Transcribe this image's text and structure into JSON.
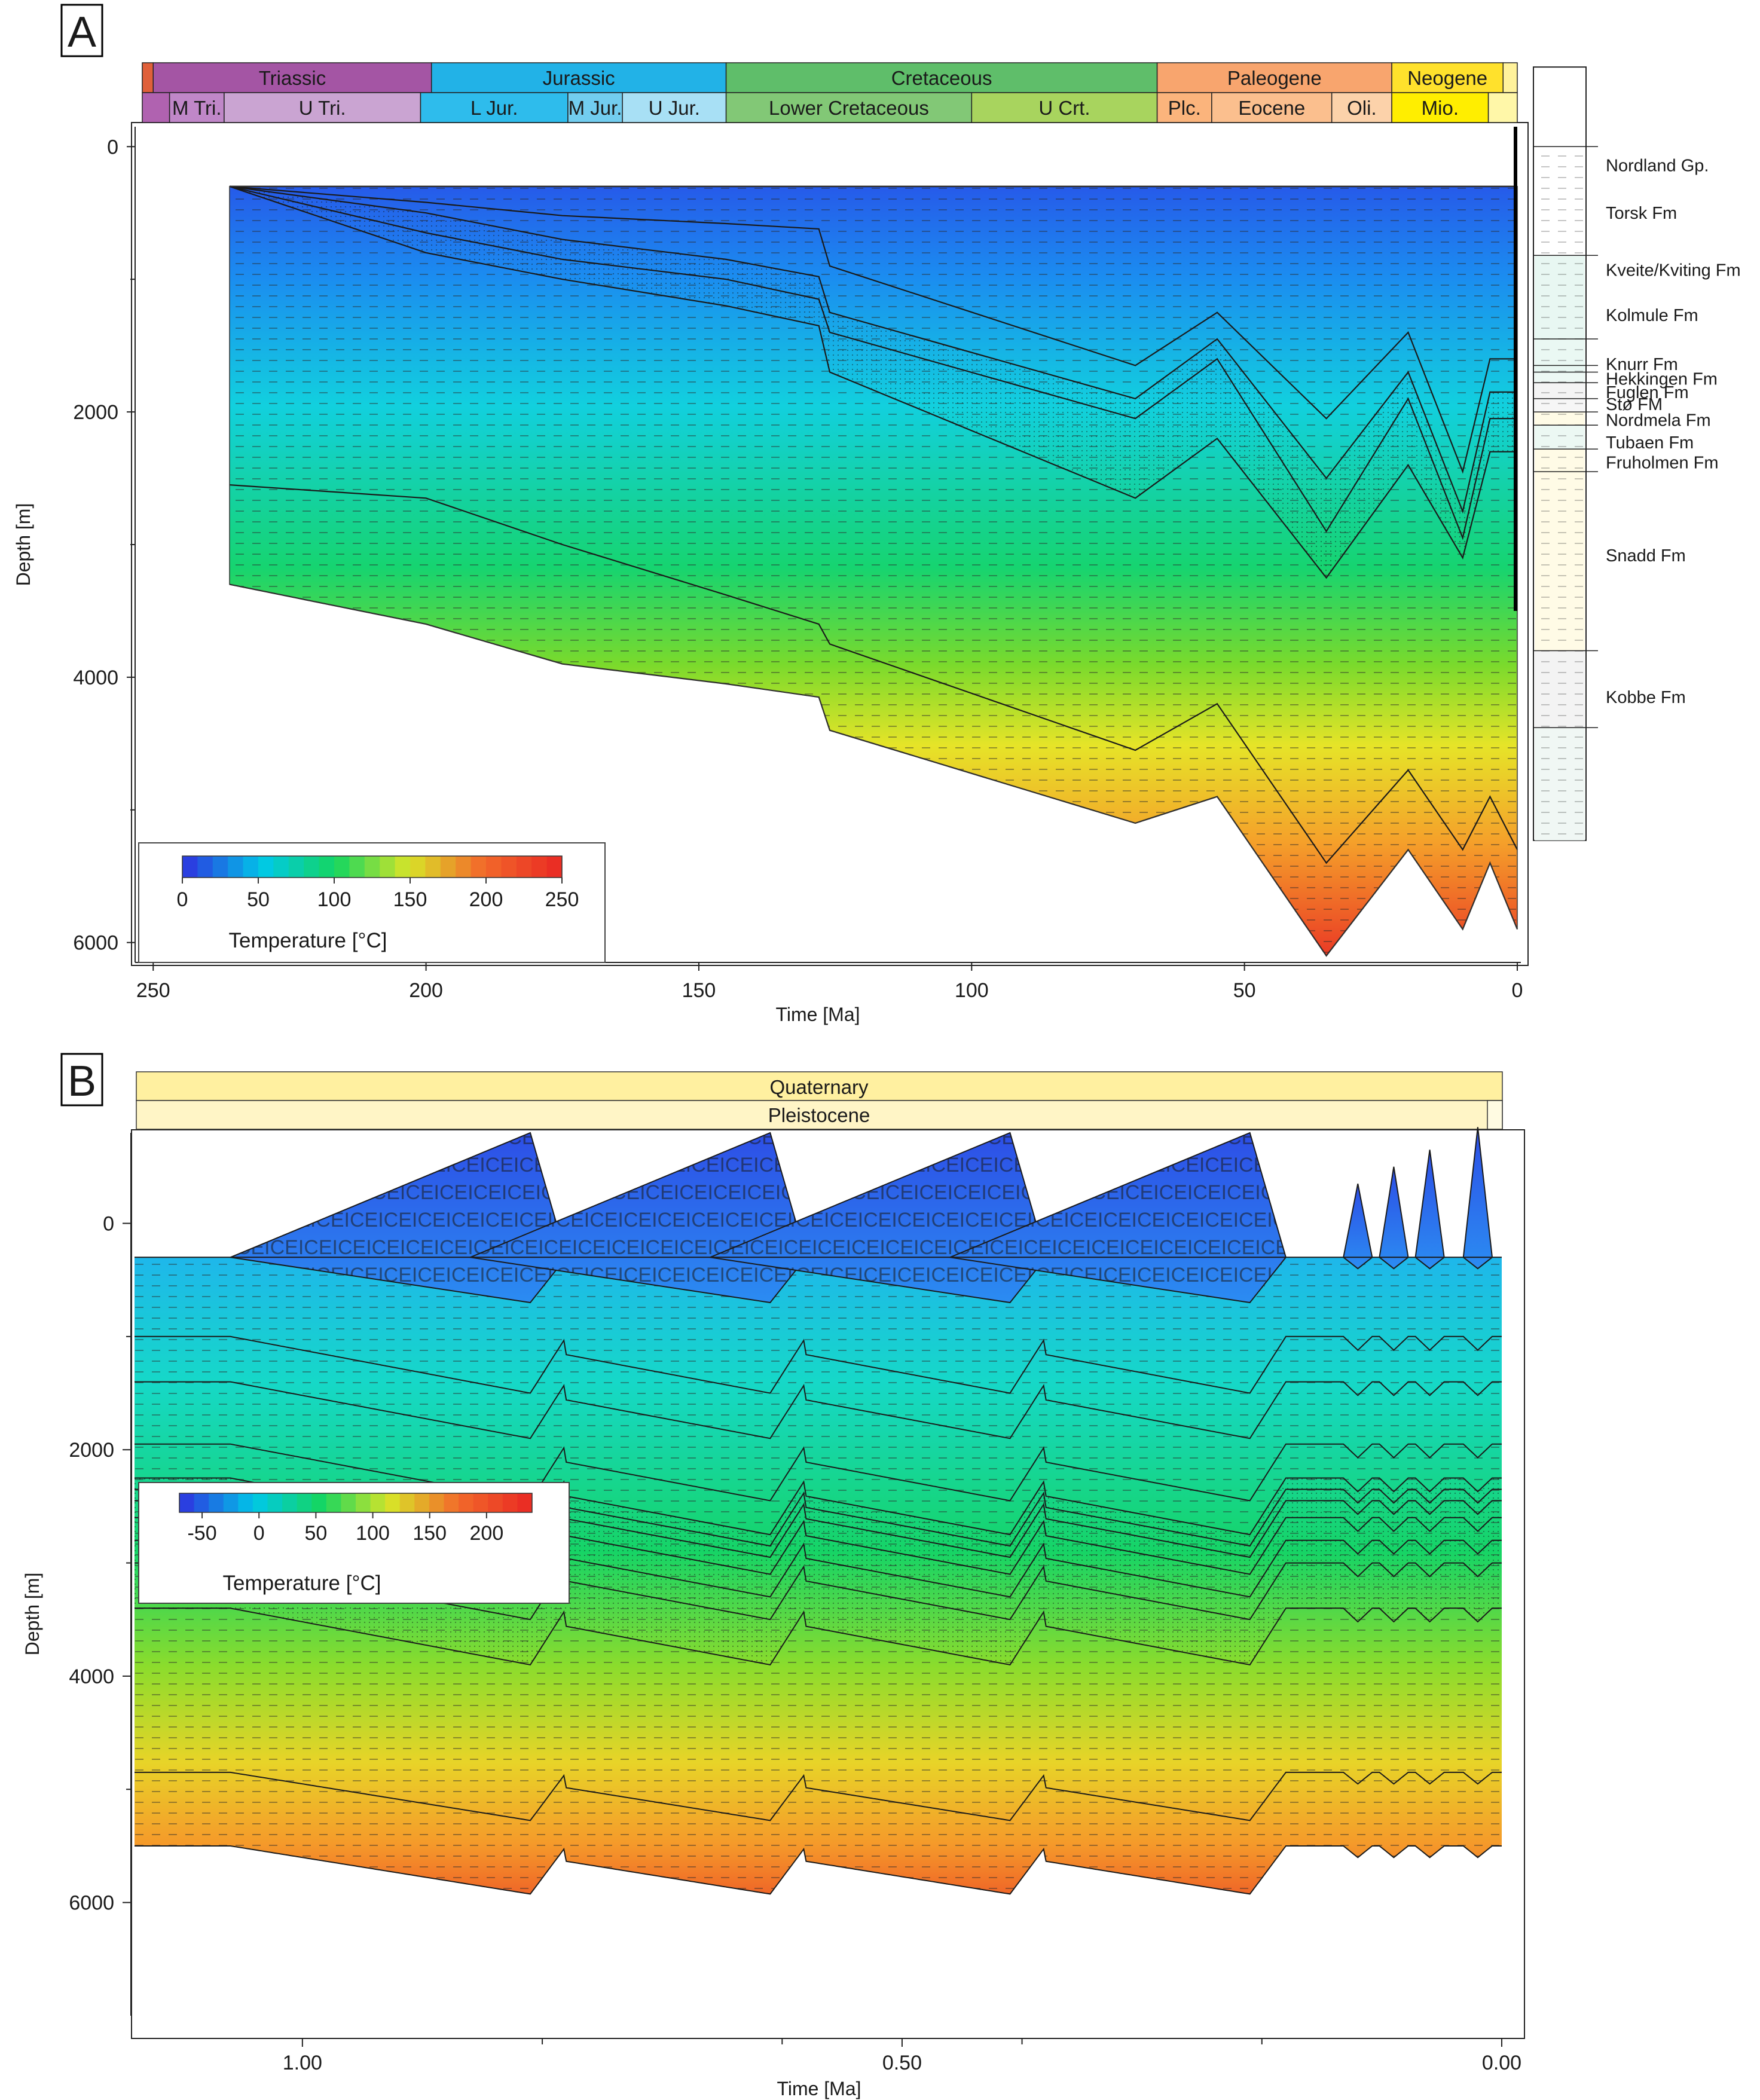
{
  "figure": {
    "panel_a_label": "A",
    "panel_b_label": "B"
  },
  "chart_data": [
    {
      "type": "heatmap",
      "panel": "A",
      "title": "",
      "xlabel": "Time [Ma]",
      "ylabel": "Depth [m]",
      "xlim": [
        252,
        0
      ],
      "ylim": [
        -150,
        6150
      ],
      "x_ticks": [
        250,
        200,
        150,
        100,
        50,
        0
      ],
      "y_ticks": [
        0,
        2000,
        4000,
        6000
      ],
      "periods": [
        {
          "label": "",
          "start": 252,
          "end": 250,
          "color": "#e0603a"
        },
        {
          "label": "Triassic",
          "start": 250,
          "end": 199,
          "color": "#a455a4"
        },
        {
          "label": "Jurassic",
          "start": 199,
          "end": 145,
          "color": "#22b2e7"
        },
        {
          "label": "Cretaceous",
          "start": 145,
          "end": 66,
          "color": "#5fbe6a"
        },
        {
          "label": "Paleogene",
          "start": 66,
          "end": 23,
          "color": "#f8a56e"
        },
        {
          "label": "Neogene",
          "start": 23,
          "end": 2.6,
          "color": "#ffe12c"
        },
        {
          "label": "",
          "start": 2.6,
          "end": 0,
          "color": "#fff29b"
        }
      ],
      "epochs": [
        {
          "label": "",
          "start": 252,
          "end": 247,
          "color": "#b062b0"
        },
        {
          "label": "M Tri.",
          "start": 247,
          "end": 237,
          "color": "#c087c8"
        },
        {
          "label": "U Tri.",
          "start": 237,
          "end": 201,
          "color": "#caa4d2"
        },
        {
          "label": "L Jur.",
          "start": 201,
          "end": 174,
          "color": "#2ebcec"
        },
        {
          "label": "M Jur.",
          "start": 174,
          "end": 164,
          "color": "#72cdef"
        },
        {
          "label": "U Jur.",
          "start": 164,
          "end": 145,
          "color": "#a8e0f5"
        },
        {
          "label": "Lower Cretaceous",
          "start": 145,
          "end": 100,
          "color": "#82c876"
        },
        {
          "label": "U Crt.",
          "start": 100,
          "end": 66,
          "color": "#a8d45e"
        },
        {
          "label": "Plc.",
          "start": 66,
          "end": 56,
          "color": "#fbb47c"
        },
        {
          "label": "Eocene",
          "start": 56,
          "end": 34,
          "color": "#fbbf8e"
        },
        {
          "label": "Oli.",
          "start": 34,
          "end": 23,
          "color": "#fcd2aa"
        },
        {
          "label": "Mio.",
          "start": 23,
          "end": 5.3,
          "color": "#ffee00"
        },
        {
          "label": "",
          "start": 5.3,
          "end": 0,
          "color": "#fff7a8"
        }
      ],
      "formations": [
        {
          "label": "Nordland Gp.",
          "depth": 140,
          "lith_color": "#ffffff"
        },
        {
          "label": "Torsk Fm",
          "depth": 500,
          "lith_color": "#e8f7f2"
        },
        {
          "label": "Kveite/Kviting Fm",
          "depth": 930,
          "lith_color": "#eaf8f3"
        },
        {
          "label": "Kolmule Fm",
          "depth": 1270,
          "lith_color": "#e8f7f2"
        },
        {
          "label": "Knurr Fm",
          "depth": 1640,
          "lith_color": "#edf8f4"
        },
        {
          "label": "Hekkingen Fm",
          "depth": 1750,
          "lith_color": "#f4f4f4"
        },
        {
          "label": "Fuglen Fm",
          "depth": 1850,
          "lith_color": "#f6f6f6"
        },
        {
          "label": "Stø FM",
          "depth": 1940,
          "lith_color": "#fffbe6"
        },
        {
          "label": "Nordmela Fm",
          "depth": 2060,
          "lith_color": "#ecf8f3"
        },
        {
          "label": "Tubaen Fm",
          "depth": 2230,
          "lith_color": "#fffbe6"
        },
        {
          "label": "Fruholmen Fm",
          "depth": 2380,
          "lith_color": "#fffbe6"
        },
        {
          "label": "Snadd Fm",
          "depth": 3080,
          "lith_color": "#f3f3f3"
        },
        {
          "label": "Kobbe Fm",
          "depth": 4150,
          "lith_color": "#f0f7f4"
        }
      ],
      "formation_tops": [
        0,
        0,
        820,
        1450,
        1650,
        1700,
        1780,
        1900,
        2000,
        2100,
        2280,
        2450,
        3800,
        4380,
        5230
      ],
      "burial_time": [
        236,
        200,
        175,
        145,
        128,
        126,
        70,
        55,
        35,
        20,
        10,
        5,
        0
      ],
      "seafloor": [
        300,
        300,
        300,
        300,
        300,
        300,
        300,
        300,
        300,
        300,
        300,
        300,
        300
      ],
      "horizons": [
        [
          300,
          420,
          520,
          580,
          620,
          900,
          1650,
          1250,
          2050,
          1400,
          2450,
          1600,
          1600
        ],
        [
          300,
          500,
          700,
          850,
          980,
          1250,
          1900,
          1450,
          2500,
          1700,
          2750,
          1850,
          1850
        ],
        [
          300,
          650,
          850,
          1000,
          1150,
          1400,
          2050,
          1600,
          2900,
          1900,
          2950,
          2050,
          2050
        ],
        [
          300,
          800,
          1000,
          1200,
          1350,
          1700,
          2650,
          2200,
          3250,
          2400,
          3100,
          2300,
          2300
        ],
        [
          2550,
          2650,
          3000,
          3380,
          3600,
          3750,
          4550,
          4200,
          5400,
          4700,
          5300,
          4900,
          5300
        ],
        [
          3300,
          3600,
          3900,
          4050,
          4150,
          4400,
          5100,
          4900,
          6100,
          5300,
          5900,
          5400,
          5900
        ]
      ],
      "colorbar": {
        "label": "Temperature [°C]",
        "ticks": [
          0,
          50,
          100,
          150,
          200,
          250
        ],
        "range": [
          0,
          250
        ],
        "colors": [
          "#2a3fe0",
          "#00c8e8",
          "#15d660",
          "#d8e428",
          "#f26b2a",
          "#ea2e24"
        ]
      }
    },
    {
      "type": "heatmap",
      "panel": "B",
      "title": "",
      "xlabel": "Time [Ma]",
      "ylabel": "Depth [m]",
      "xlim": [
        1.14,
        0
      ],
      "ylim": [
        -800,
        7000
      ],
      "x_ticks": [
        1.0,
        0.5,
        0.0
      ],
      "x_tick_labels": [
        "1.00",
        "0.50",
        "0.00"
      ],
      "y_ticks": [
        0,
        2000,
        4000,
        6000
      ],
      "period": {
        "label": "Quaternary",
        "color": "#fff0a0"
      },
      "epoch": {
        "label": "Pleistocene",
        "color": "#fff5c6"
      },
      "ice_label": "ICE",
      "glacial_cycles": [
        {
          "start": 1.06,
          "peak": 0.81,
          "end": 0.78
        },
        {
          "start": 0.86,
          "peak": 0.61,
          "end": 0.58
        },
        {
          "start": 0.66,
          "peak": 0.41,
          "end": 0.38
        },
        {
          "start": 0.46,
          "peak": 0.21,
          "end": 0.18
        }
      ],
      "ice_cap_top": -800,
      "ice_base_max": 700,
      "minor_pulses": [
        0.12,
        0.09,
        0.06,
        0.02
      ],
      "seafloor": 300,
      "horizon_base_depths": [
        1000,
        1400,
        1950,
        2250,
        2350,
        2450,
        2600,
        2800,
        3000,
        3400,
        4850,
        5500
      ],
      "subsidence_amplitude": 500,
      "colorbar": {
        "label": "Temperature [°C]",
        "ticks": [
          -50,
          0,
          50,
          100,
          150,
          200
        ],
        "range": [
          -70,
          240
        ],
        "colors": [
          "#2a3fe0",
          "#00c8e8",
          "#15d660",
          "#d8e428",
          "#f26b2a",
          "#ea2e24"
        ]
      }
    }
  ]
}
